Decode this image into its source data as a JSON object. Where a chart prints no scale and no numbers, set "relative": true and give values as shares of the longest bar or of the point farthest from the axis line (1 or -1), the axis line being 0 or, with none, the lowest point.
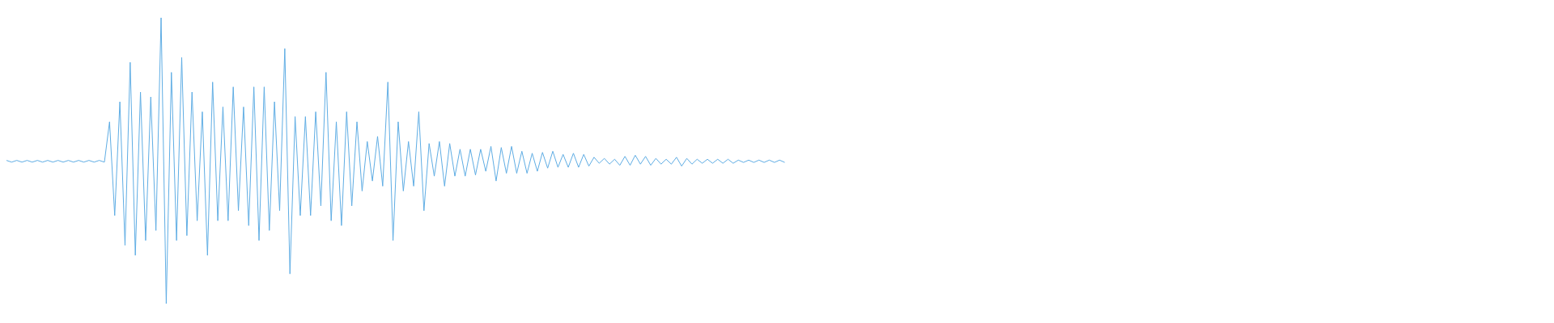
{
  "chart_data": {
    "type": "line",
    "relative": true,
    "marker": "none",
    "categories": [
      null,
      null,
      null,
      null,
      null,
      null,
      null,
      null,
      null,
      null,
      null,
      null,
      null,
      null,
      null,
      null,
      null,
      null,
      null,
      null,
      null,
      null,
      null,
      null,
      null,
      null,
      null,
      null,
      null,
      null,
      null,
      null,
      null,
      null,
      null,
      null,
      null,
      null,
      null,
      null,
      null,
      null,
      null,
      null,
      null,
      null,
      null,
      null,
      null,
      null,
      null,
      null,
      null,
      null,
      null,
      null,
      null,
      null,
      null,
      null,
      null,
      null,
      null,
      null,
      null,
      null,
      null,
      null,
      null,
      null,
      null,
      null,
      null,
      null,
      null,
      null,
      null,
      null,
      null,
      null,
      null,
      null,
      null,
      null,
      null,
      null,
      null,
      null,
      null,
      null,
      null,
      null,
      null,
      null,
      null,
      null,
      null,
      null,
      null,
      null,
      null,
      null,
      null,
      null,
      null,
      null,
      null,
      null,
      null,
      null,
      null,
      null,
      null,
      null,
      null,
      null,
      null,
      null,
      null,
      null,
      null,
      null,
      null,
      null,
      null,
      null,
      null,
      null,
      null,
      null,
      null,
      null,
      null,
      null,
      null,
      null,
      null,
      null,
      null,
      null,
      null,
      null,
      null,
      null,
      null,
      null,
      null,
      null,
      null,
      null,
      null,
      null,
      null,
      null,
      null,
      null,
      null,
      null,
      null,
      null,
      null,
      null,
      null,
      null,
      null,
      null,
      null,
      null,
      null,
      null,
      null,
      null,
      null,
      null,
      null,
      null,
      null,
      null,
      null,
      null,
      null,
      null,
      null,
      null,
      null,
      null,
      null,
      null,
      null,
      null,
      null,
      null,
      null,
      null,
      null,
      null,
      null,
      null,
      null,
      null,
      null,
      null,
      null,
      null,
      null,
      null,
      null,
      null,
      null,
      null,
      null,
      null,
      null,
      null,
      null,
      null,
      null,
      null,
      null,
      null,
      null,
      null,
      null,
      null,
      null,
      null,
      null,
      null,
      null,
      null,
      null,
      null,
      null,
      null,
      null,
      null,
      null,
      null,
      null,
      null,
      null,
      null,
      null,
      null,
      null,
      null,
      null,
      null,
      null,
      null,
      null,
      null,
      null,
      null,
      null,
      null,
      null,
      null,
      null,
      null,
      null,
      null,
      null,
      null,
      null,
      null,
      null,
      null,
      null,
      null,
      null,
      null,
      null,
      null,
      null,
      null,
      null,
      null,
      null,
      null,
      null,
      null,
      null,
      null,
      null,
      null,
      null,
      null,
      null,
      null,
      null,
      null,
      null,
      null,
      null,
      null,
      null,
      null,
      null,
      null
    ],
    "series": [
      {
        "color": "#5fade4",
        "values": [
          0.501,
          0.495,
          0.501,
          0.495,
          0.501,
          0.495,
          0.501,
          0.495,
          0.501,
          0.495,
          0.501,
          0.495,
          0.501,
          0.495,
          0.501,
          0.495,
          0.501,
          0.495,
          0.501,
          0.495,
          0.636,
          0.308,
          0.706,
          0.204,
          0.844,
          0.169,
          0.74,
          0.221,
          0.723,
          0.256,
          1,
          0,
          0.809,
          0.221,
          0.861,
          0.238,
          0.74,
          0.29,
          0.671,
          0.169,
          0.775,
          0.29,
          0.688,
          0.29,
          0.758,
          0.325,
          0.688,
          0.273,
          0.758,
          0.221,
          0.758,
          0.256,
          0.706,
          0.325,
          0.892,
          0.104,
          0.654,
          0.308,
          0.654,
          0.308,
          0.671,
          0.342,
          0.809,
          0.29,
          0.636,
          0.273,
          0.671,
          0.342,
          0.636,
          0.394,
          0.567,
          0.429,
          0.585,
          0.411,
          0.775,
          0.221,
          0.636,
          0.394,
          0.567,
          0.411,
          0.671,
          0.325,
          0.56,
          0.446,
          0.567,
          0.411,
          0.56,
          0.446,
          0.54,
          0.446,
          0.54,
          0.45,
          0.54,
          0.463,
          0.55,
          0.429,
          0.546,
          0.456,
          0.55,
          0.456,
          0.533,
          0.456,
          0.526,
          0.463,
          0.529,
          0.474,
          0.533,
          0.477,
          0.522,
          0.477,
          0.526,
          0.477,
          0.522,
          0.481,
          0.512,
          0.491,
          0.508,
          0.488,
          0.505,
          0.484,
          0.515,
          0.484,
          0.519,
          0.488,
          0.515,
          0.484,
          0.508,
          0.488,
          0.505,
          0.488,
          0.512,
          0.481,
          0.508,
          0.488,
          0.505,
          0.491,
          0.505,
          0.491,
          0.505,
          0.491,
          0.505,
          0.491,
          0.502,
          0.494,
          0.502,
          0.494,
          0.502,
          0.494,
          0.502,
          0.494,
          0.502,
          0.494,
          null,
          null,
          null,
          null,
          null,
          null,
          null,
          null,
          null,
          null,
          null,
          null,
          null,
          null,
          null,
          null,
          null,
          null,
          null,
          null,
          null,
          null,
          null,
          null,
          null,
          null,
          null,
          null,
          null,
          null,
          null,
          null,
          null,
          null,
          null,
          null,
          null,
          null,
          null,
          null,
          null,
          null,
          null,
          null,
          null,
          null,
          null,
          null,
          null,
          null,
          null,
          null,
          null,
          null,
          null,
          null,
          null,
          null,
          null,
          null,
          null,
          null,
          null,
          null,
          null,
          null,
          null,
          null,
          null,
          null,
          null,
          null,
          null,
          null,
          null,
          null,
          null,
          null,
          null,
          null,
          null,
          null,
          null,
          null,
          null,
          null,
          null,
          null,
          null,
          null,
          null,
          null,
          null,
          null,
          null,
          null,
          null,
          null,
          null,
          null,
          null,
          null,
          null,
          null,
          null,
          null,
          null,
          null,
          null,
          null,
          null,
          null,
          null,
          null,
          null,
          null,
          null,
          null,
          null,
          null,
          null,
          null,
          null,
          null,
          null,
          null,
          null,
          null,
          null,
          null,
          null,
          null,
          null,
          null,
          null,
          null,
          null,
          null,
          null,
          null,
          null,
          null,
          null,
          null,
          null,
          null,
          null,
          null
        ]
      }
    ]
  }
}
